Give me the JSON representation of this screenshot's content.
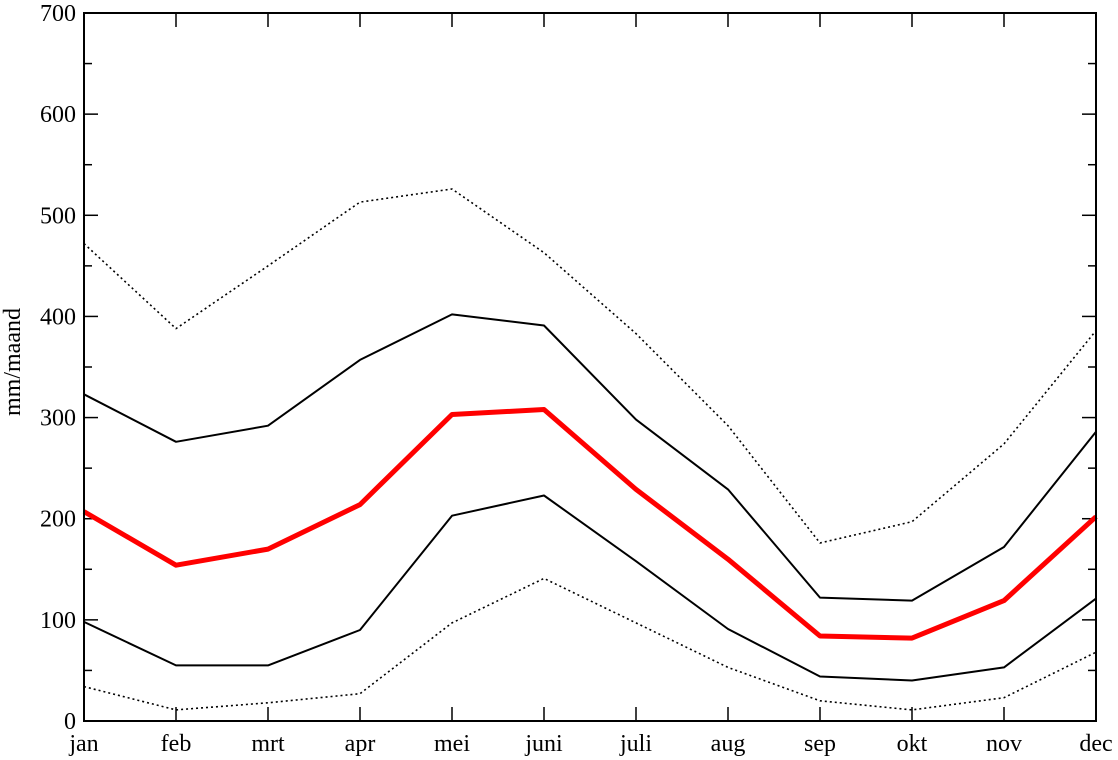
{
  "chart_data": {
    "type": "line",
    "title": "",
    "xlabel": "",
    "ylabel": "mm/maand",
    "ylim": [
      0,
      700
    ],
    "yticks": [
      0,
      100,
      200,
      300,
      400,
      500,
      600,
      700
    ],
    "y_minor_step": 50,
    "grid": false,
    "legend": "none",
    "categories": [
      "jan",
      "feb",
      "mrt",
      "apr",
      "mei",
      "juni",
      "juli",
      "aug",
      "sep",
      "okt",
      "nov",
      "dec"
    ],
    "series": [
      {
        "style": "dotted",
        "color": "#000000",
        "values": [
          472,
          388,
          450,
          513,
          526,
          463,
          383,
          292,
          176,
          197,
          274,
          386
        ]
      },
      {
        "style": "solid",
        "color": "#000000",
        "values": [
          323,
          276,
          292,
          357,
          402,
          391,
          298,
          229,
          122,
          119,
          172,
          286
        ]
      },
      {
        "style": "thick",
        "color": "#ff0000",
        "values": [
          207,
          154,
          170,
          214,
          303,
          308,
          229,
          160,
          84,
          82,
          119,
          202
        ]
      },
      {
        "style": "solid",
        "color": "#000000",
        "values": [
          98,
          55,
          55,
          90,
          203,
          223,
          158,
          91,
          44,
          40,
          53,
          121
        ]
      },
      {
        "style": "dotted",
        "color": "#000000",
        "values": [
          34,
          11,
          18,
          27,
          97,
          141,
          97,
          53,
          20,
          11,
          23,
          68
        ]
      }
    ]
  }
}
